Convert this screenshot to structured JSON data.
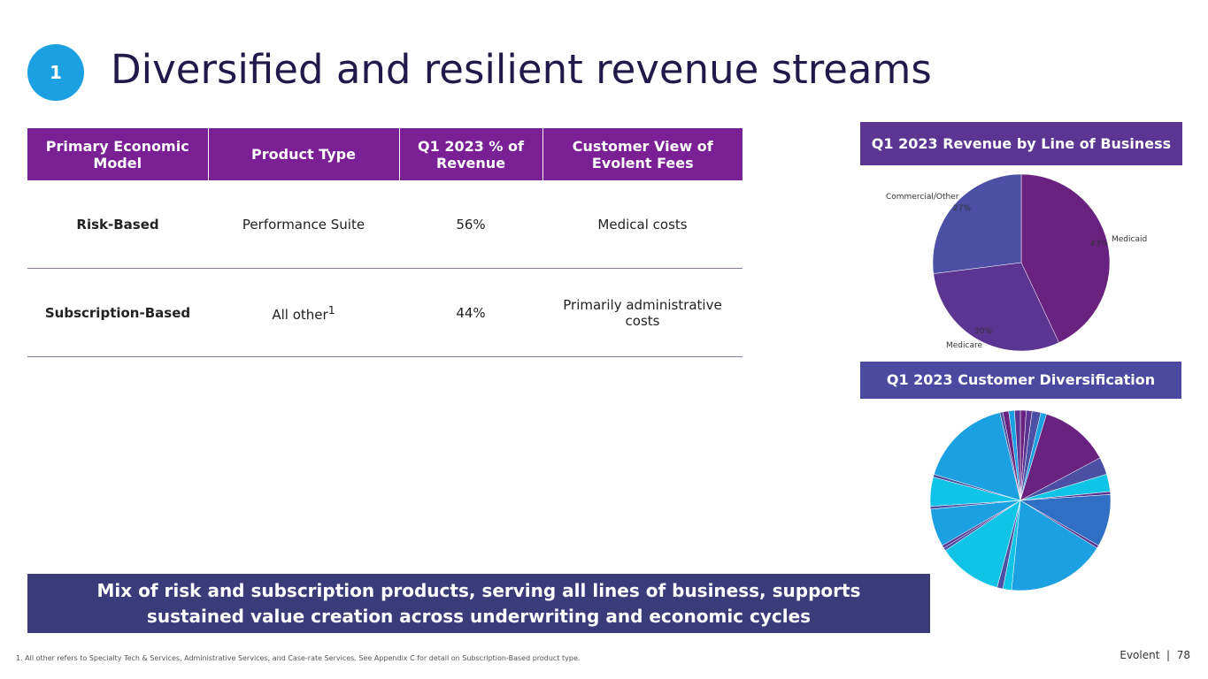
{
  "badge": "1",
  "title": "Diversified and resilient revenue streams",
  "table": {
    "headers": [
      "Primary Economic Model",
      "Product Type",
      "Q1 2023 % of Revenue",
      "Customer View of Evolent Fees"
    ],
    "rows": [
      [
        "Risk-Based",
        "Performance Suite",
        "56%",
        "Medical costs"
      ],
      [
        "Subscription-Based",
        {
          "text": "All other",
          "sup": "1"
        },
        "44%",
        "Primarily administrative costs"
      ]
    ]
  },
  "chart_data": [
    {
      "type": "pie",
      "title": "Q1 2023 Revenue by Line of Business",
      "categories": [
        "Medicaid",
        "Medicare",
        "Commercial/Other"
      ],
      "values": [
        43,
        30,
        27
      ],
      "value_labels": [
        "43%",
        "30%",
        "27%"
      ],
      "colors": [
        "#6a2280",
        "#5b3591",
        "#4b50a5"
      ]
    },
    {
      "type": "pie",
      "title": "Q1 2023 Customer Diversification",
      "values": [
        1,
        1,
        1.5,
        1,
        12,
        3,
        3,
        0.5,
        9,
        0.5,
        17,
        1.5,
        1,
        11,
        0.5,
        0.5,
        6.5,
        0.5,
        5,
        0.5,
        16,
        0.5,
        1,
        1,
        1
      ],
      "colors": [
        "#6a2280",
        "#5b3591",
        "#4b50a5",
        "#1ba1e2",
        "#6a2280",
        "#4b50a5",
        "#10c4e8",
        "#5b3591",
        "#2f6fc4",
        "#5b3591",
        "#1ba1e2",
        "#10c4e8",
        "#4b50a5",
        "#10c4e8",
        "#4b50a5",
        "#5b3591",
        "#1ba1e2",
        "#4b50a5",
        "#10c4e8",
        "#4b50a5",
        "#1ba1e2",
        "#4b50a5",
        "#6a2280",
        "#1ba1e2",
        "#5b3591"
      ]
    }
  ],
  "callout": [
    "Mix of risk and subscription products, serving all lines of business, supports",
    "sustained value creation across underwriting and economic cycles"
  ],
  "footnote": "1.   All other refers to Specialty Tech & Services, Administrative Services, and Case-rate Services. See Appendix C for detail on Subscription-Based product type.",
  "footer": "Evolent  |  78"
}
